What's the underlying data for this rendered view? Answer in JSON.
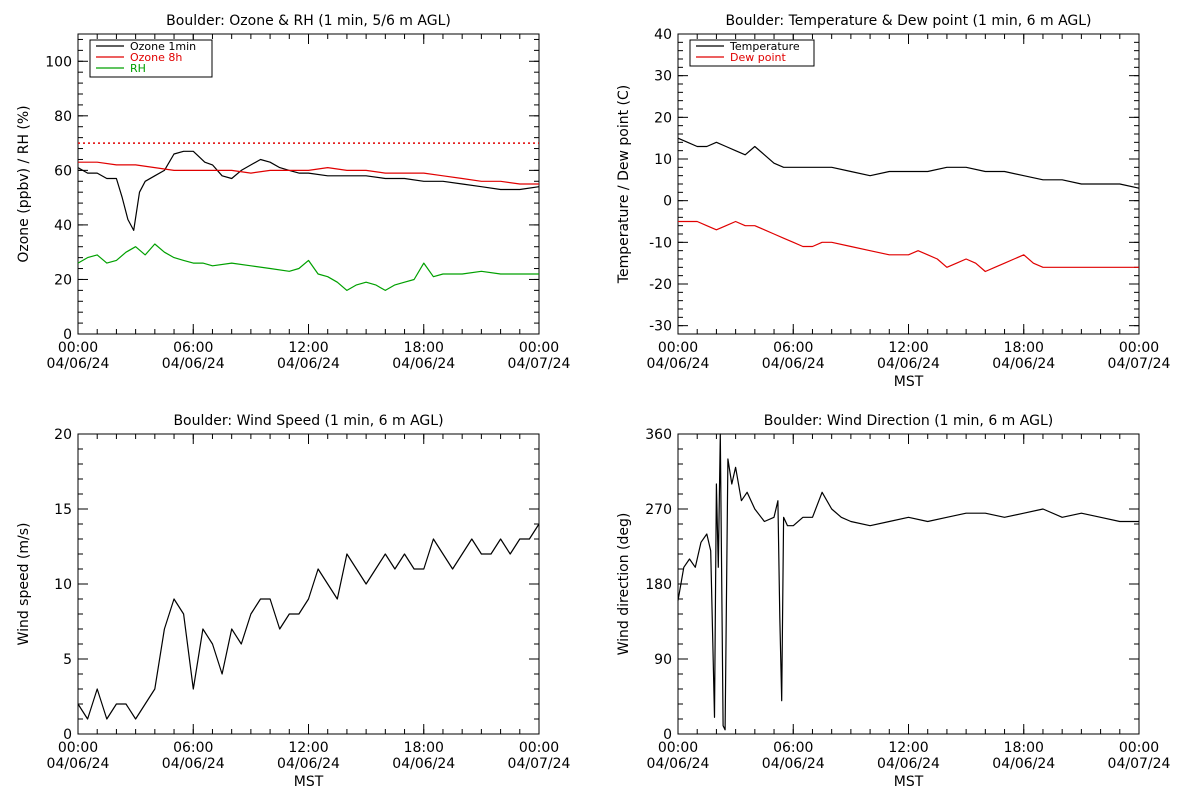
{
  "chart_data": [
    {
      "type": "line",
      "title": "Boulder: Ozone & RH (1 min, 5/6 m AGL)",
      "xlabel": "",
      "ylabel": "Ozone (ppbv) / RH (%)",
      "ylim": [
        0,
        110
      ],
      "yticks": [
        "0",
        "20",
        "40",
        "60",
        "80",
        "100"
      ],
      "xticks": [
        {
          "time": "00:00",
          "date": "04/06/24"
        },
        {
          "time": "06:00",
          "date": "04/06/24"
        },
        {
          "time": "12:00",
          "date": "04/06/24"
        },
        {
          "time": "18:00",
          "date": "04/06/24"
        },
        {
          "time": "00:00",
          "date": "04/07/24"
        }
      ],
      "xlim": [
        0,
        24
      ],
      "legend_position": "top-left",
      "reference_lines": [
        {
          "y": 70,
          "color": "#e00000",
          "style": "dotted"
        }
      ],
      "series": [
        {
          "name": "Ozone 1min",
          "color": "#000000",
          "x": [
            0,
            0.5,
            1,
            1.5,
            2,
            2.3,
            2.6,
            2.9,
            3.2,
            3.5,
            4,
            4.5,
            5,
            5.5,
            6,
            6.3,
            6.6,
            7,
            7.5,
            8,
            8.5,
            9,
            9.5,
            10,
            10.5,
            11,
            11.5,
            12,
            13,
            14,
            15,
            16,
            17,
            18,
            19,
            20,
            21,
            22,
            23,
            24
          ],
          "y": [
            61,
            59,
            59,
            57,
            57,
            50,
            42,
            38,
            52,
            56,
            58,
            60,
            66,
            67,
            67,
            65,
            63,
            62,
            58,
            57,
            60,
            62,
            64,
            63,
            61,
            60,
            59,
            59,
            58,
            58,
            58,
            57,
            57,
            56,
            56,
            55,
            54,
            53,
            53,
            54
          ]
        },
        {
          "name": "Ozone 8h",
          "color": "#e00000",
          "x": [
            0,
            1,
            2,
            3,
            4,
            5,
            6,
            7,
            8,
            9,
            10,
            11,
            12,
            13,
            14,
            15,
            16,
            17,
            18,
            19,
            20,
            21,
            22,
            23,
            24
          ],
          "y": [
            63,
            63,
            62,
            62,
            61,
            60,
            60,
            60,
            60,
            59,
            60,
            60,
            60,
            61,
            60,
            60,
            59,
            59,
            59,
            58,
            57,
            56,
            56,
            55,
            55
          ]
        },
        {
          "name": "RH",
          "color": "#00a000",
          "x": [
            0,
            0.5,
            1,
            1.5,
            2,
            2.5,
            3,
            3.5,
            4,
            4.5,
            5,
            5.5,
            6,
            6.5,
            7,
            8,
            9,
            10,
            11,
            11.5,
            12,
            12.5,
            13,
            13.5,
            14,
            14.5,
            15,
            15.5,
            16,
            16.5,
            17,
            17.5,
            18,
            18.5,
            19,
            20,
            21,
            22,
            23,
            24
          ],
          "y": [
            26,
            28,
            29,
            26,
            27,
            30,
            32,
            29,
            33,
            30,
            28,
            27,
            26,
            26,
            25,
            26,
            25,
            24,
            23,
            24,
            27,
            22,
            21,
            19,
            16,
            18,
            19,
            18,
            16,
            18,
            19,
            20,
            26,
            21,
            22,
            22,
            23,
            22,
            22,
            22
          ]
        }
      ]
    },
    {
      "type": "line",
      "title": "Boulder: Temperature & Dew point (1 min, 6 m AGL)",
      "xlabel": "MST",
      "ylabel": "Temperature / Dew point (C)",
      "ylim": [
        -32,
        40
      ],
      "yticks": [
        "-30",
        "-20",
        "-10",
        "0",
        "10",
        "20",
        "30",
        "40"
      ],
      "xticks": [
        {
          "time": "00:00",
          "date": "04/06/24"
        },
        {
          "time": "06:00",
          "date": "04/06/24"
        },
        {
          "time": "12:00",
          "date": "04/06/24"
        },
        {
          "time": "18:00",
          "date": "04/06/24"
        },
        {
          "time": "00:00",
          "date": "04/07/24"
        }
      ],
      "xlim": [
        0,
        24
      ],
      "legend_position": "top-left",
      "series": [
        {
          "name": "Temperature",
          "color": "#000000",
          "x": [
            0,
            0.5,
            1,
            1.5,
            2,
            2.5,
            3,
            3.5,
            4,
            4.5,
            5,
            5.5,
            6,
            7,
            8,
            9,
            10,
            11,
            12,
            13,
            14,
            15,
            16,
            17,
            18,
            19,
            20,
            21,
            22,
            23,
            24
          ],
          "y": [
            15,
            14,
            13,
            13,
            14,
            13,
            12,
            11,
            13,
            11,
            9,
            8,
            8,
            8,
            8,
            7,
            6,
            7,
            7,
            7,
            8,
            8,
            7,
            7,
            6,
            5,
            5,
            4,
            4,
            4,
            3
          ]
        },
        {
          "name": "Dew point",
          "color": "#e00000",
          "x": [
            0,
            0.5,
            1,
            1.5,
            2,
            2.5,
            3,
            3.5,
            4,
            4.5,
            5,
            5.5,
            6,
            6.5,
            7,
            7.5,
            8,
            9,
            10,
            11,
            12,
            12.5,
            13,
            13.5,
            14,
            14.5,
            15,
            15.5,
            16,
            16.5,
            17,
            17.5,
            18,
            18.5,
            19,
            20,
            21,
            22,
            23,
            24
          ],
          "y": [
            -5,
            -5,
            -5,
            -6,
            -7,
            -6,
            -5,
            -6,
            -6,
            -7,
            -8,
            -9,
            -10,
            -11,
            -11,
            -10,
            -10,
            -11,
            -12,
            -13,
            -13,
            -12,
            -13,
            -14,
            -16,
            -15,
            -14,
            -15,
            -17,
            -16,
            -15,
            -14,
            -13,
            -15,
            -16,
            -16,
            -16,
            -16,
            -16,
            -16
          ]
        }
      ]
    },
    {
      "type": "line",
      "title": "Boulder: Wind Speed (1 min, 6 m AGL)",
      "xlabel": "MST",
      "ylabel": "Wind speed (m/s)",
      "ylim": [
        0,
        20
      ],
      "yticks": [
        "0",
        "5",
        "10",
        "15",
        "20"
      ],
      "xticks": [
        {
          "time": "00:00",
          "date": "04/06/24"
        },
        {
          "time": "06:00",
          "date": "04/06/24"
        },
        {
          "time": "12:00",
          "date": "04/06/24"
        },
        {
          "time": "18:00",
          "date": "04/06/24"
        },
        {
          "time": "00:00",
          "date": "04/07/24"
        }
      ],
      "xlim": [
        0,
        24
      ],
      "series": [
        {
          "color": "#000000",
          "x": [
            0,
            0.5,
            1,
            1.5,
            2,
            2.5,
            3,
            3.5,
            4,
            4.5,
            5,
            5.5,
            6,
            6.5,
            7,
            7.5,
            8,
            8.5,
            9,
            9.5,
            10,
            10.5,
            11,
            11.5,
            12,
            12.5,
            13,
            13.5,
            14,
            14.5,
            15,
            15.5,
            16,
            16.5,
            17,
            17.5,
            18,
            18.5,
            19,
            19.5,
            20,
            20.5,
            21,
            21.5,
            22,
            22.5,
            23,
            23.5,
            24
          ],
          "y": [
            2,
            1,
            3,
            1,
            2,
            2,
            1,
            2,
            3,
            7,
            9,
            8,
            3,
            7,
            6,
            4,
            7,
            6,
            8,
            9,
            9,
            7,
            8,
            8,
            9,
            11,
            10,
            9,
            12,
            11,
            10,
            11,
            12,
            11,
            12,
            11,
            11,
            13,
            12,
            11,
            12,
            13,
            12,
            12,
            13,
            12,
            13,
            13,
            14
          ]
        }
      ]
    },
    {
      "type": "line",
      "title": "Boulder: Wind Direction (1 min, 6 m AGL)",
      "xlabel": "MST",
      "ylabel": "Wind direction (deg)",
      "ylim": [
        0,
        360
      ],
      "yticks": [
        "0",
        "90",
        "180",
        "270",
        "360"
      ],
      "xticks": [
        {
          "time": "00:00",
          "date": "04/06/24"
        },
        {
          "time": "06:00",
          "date": "04/06/24"
        },
        {
          "time": "12:00",
          "date": "04/06/24"
        },
        {
          "time": "18:00",
          "date": "04/06/24"
        },
        {
          "time": "00:00",
          "date": "04/07/24"
        }
      ],
      "xlim": [
        0,
        24
      ],
      "series": [
        {
          "color": "#000000",
          "x": [
            0,
            0.3,
            0.6,
            0.9,
            1.2,
            1.5,
            1.7,
            1.9,
            2.0,
            2.1,
            2.2,
            2.35,
            2.45,
            2.6,
            2.8,
            3.0,
            3.3,
            3.6,
            4,
            4.5,
            5,
            5.2,
            5.3,
            5.4,
            5.5,
            5.7,
            6,
            6.5,
            7,
            7.5,
            8,
            8.5,
            9,
            10,
            11,
            12,
            13,
            14,
            15,
            16,
            17,
            18,
            19,
            20,
            21,
            22,
            23,
            24
          ],
          "y": [
            160,
            200,
            210,
            200,
            230,
            240,
            220,
            20,
            300,
            200,
            360,
            10,
            5,
            330,
            300,
            320,
            280,
            290,
            270,
            255,
            260,
            280,
            140,
            40,
            260,
            250,
            250,
            260,
            260,
            290,
            270,
            260,
            255,
            250,
            255,
            260,
            255,
            260,
            265,
            265,
            260,
            265,
            270,
            260,
            265,
            260,
            255,
            255
          ]
        }
      ]
    }
  ]
}
